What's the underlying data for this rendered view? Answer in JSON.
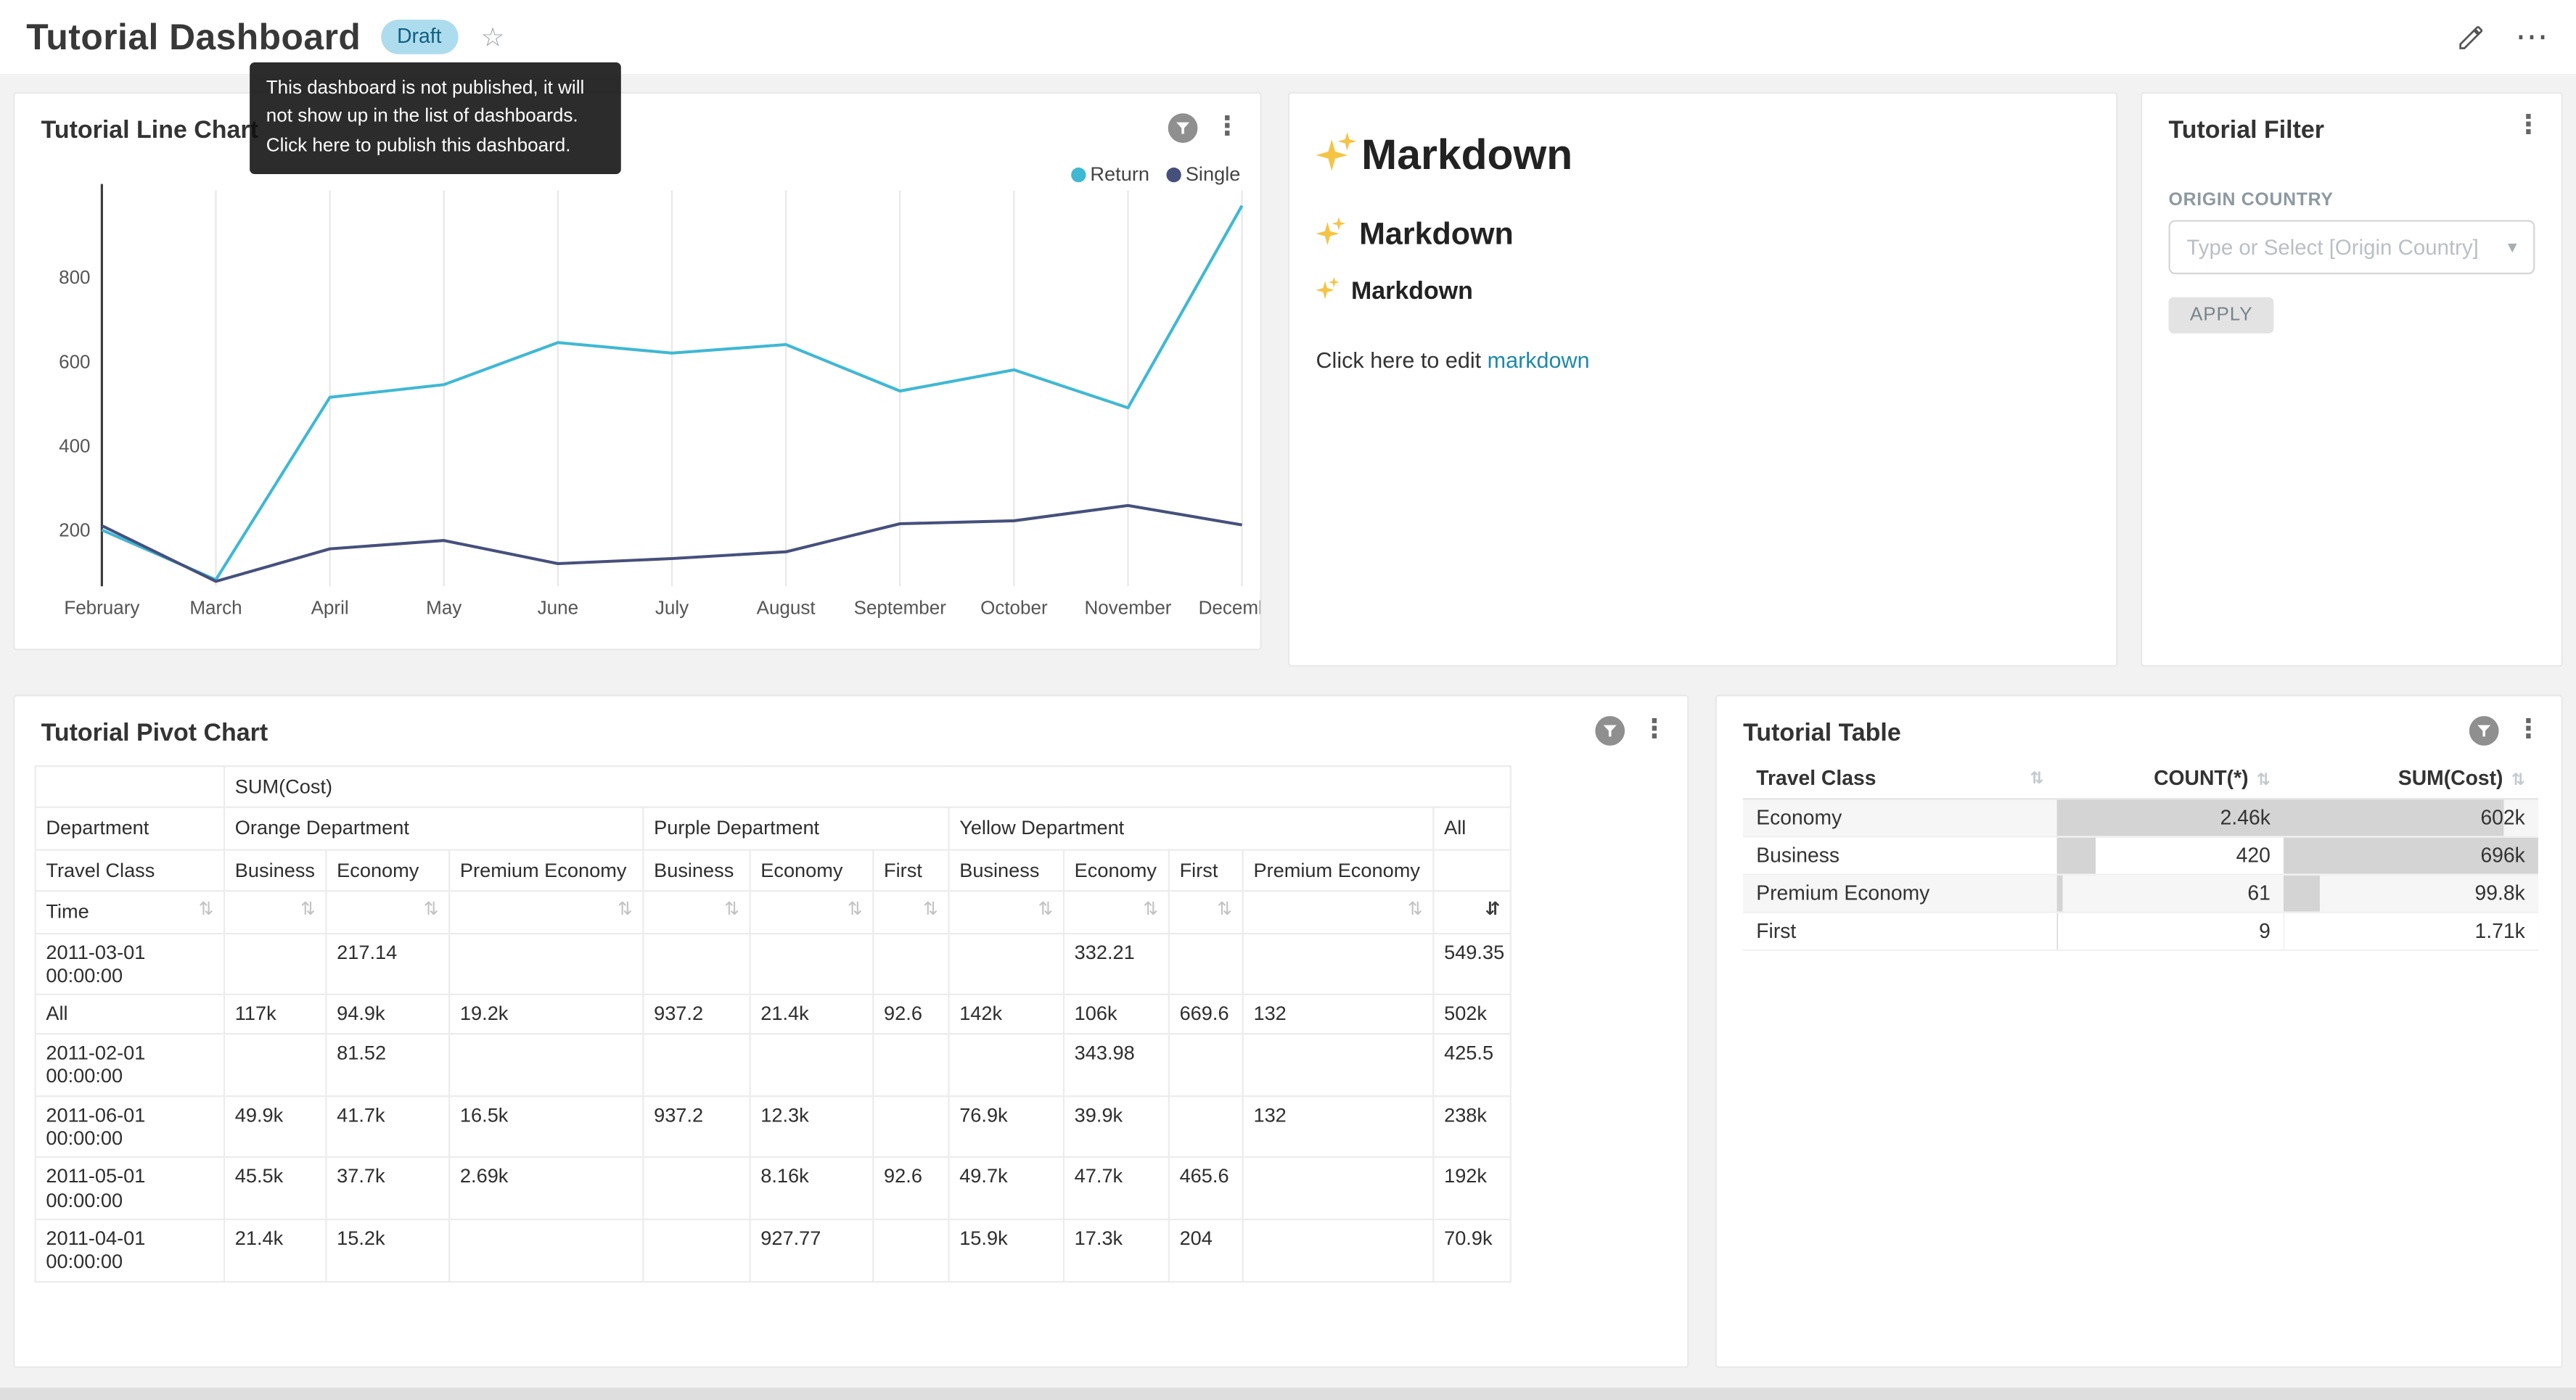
{
  "header": {
    "title": "Tutorial Dashboard",
    "badge": "Draft",
    "tooltip": "This dashboard is not published, it will not show up in the list of dashboards. Click here to publish this dashboard."
  },
  "colors": {
    "accent": "#20a7c9",
    "link": "#1e8aa8",
    "series_return": "#3fb8d4",
    "series_single": "#46507c",
    "bar": "#d4d4d4"
  },
  "line_chart": {
    "title": "Tutorial Line Chart",
    "chart_data": {
      "type": "line",
      "x": [
        "February",
        "March",
        "April",
        "May",
        "June",
        "July",
        "August",
        "September",
        "October",
        "November",
        "December"
      ],
      "yticks": [
        200,
        400,
        600,
        800
      ],
      "ylim": [
        0,
        1000
      ],
      "grid": "vertical",
      "legend_position": "top-right",
      "series": [
        {
          "name": "Return",
          "color": "#3fb8d4",
          "values": [
            200,
            82,
            515,
            545,
            645,
            620,
            640,
            530,
            580,
            490,
            970
          ]
        },
        {
          "name": "Single",
          "color": "#46507c",
          "values": [
            210,
            78,
            155,
            175,
            120,
            132,
            148,
            215,
            222,
            258,
            212
          ]
        }
      ]
    }
  },
  "markdown": {
    "h1": "Markdown",
    "h2": "Markdown",
    "h3": "Markdown",
    "paragraph_prefix": "Click here to edit ",
    "link_text": "markdown"
  },
  "filter": {
    "title": "Tutorial Filter",
    "field_label": "ORIGIN COUNTRY",
    "select_placeholder": "Type or Select [Origin Country]",
    "apply_label": "APPLY"
  },
  "pivot": {
    "title": "Tutorial Pivot Chart",
    "metric_header": "SUM(Cost)",
    "row1_label": "Department",
    "row2_label": "Travel Class",
    "row3_label": "Time",
    "groups": [
      {
        "label": "Orange Department",
        "cols": [
          "Business",
          "Economy",
          "Premium Economy"
        ]
      },
      {
        "label": "Purple Department",
        "cols": [
          "Business",
          "Economy",
          "First"
        ]
      },
      {
        "label": "Yellow Department",
        "cols": [
          "Business",
          "Economy",
          "First",
          "Premium Economy"
        ]
      },
      {
        "label": "All",
        "cols": [
          ""
        ]
      }
    ],
    "rows": [
      {
        "label": "2011-03-01 00:00:00",
        "values": [
          "",
          "217.14",
          "",
          "",
          "",
          "",
          "",
          "332.21",
          "",
          "",
          "549.35"
        ]
      },
      {
        "label": "All",
        "values": [
          "117k",
          "94.9k",
          "19.2k",
          "937.2",
          "21.4k",
          "92.6",
          "142k",
          "106k",
          "669.6",
          "132",
          "502k"
        ]
      },
      {
        "label": "2011-02-01 00:00:00",
        "values": [
          "",
          "81.52",
          "",
          "",
          "",
          "",
          "",
          "343.98",
          "",
          "",
          "425.5"
        ]
      },
      {
        "label": "2011-06-01 00:00:00",
        "values": [
          "49.9k",
          "41.7k",
          "16.5k",
          "937.2",
          "12.3k",
          "",
          "76.9k",
          "39.9k",
          "",
          "132",
          "238k"
        ]
      },
      {
        "label": "2011-05-01 00:00:00",
        "values": [
          "45.5k",
          "37.7k",
          "2.69k",
          "",
          "8.16k",
          "92.6",
          "49.7k",
          "47.7k",
          "465.6",
          "",
          "192k"
        ]
      },
      {
        "label": "2011-04-01 00:00:00",
        "values": [
          "21.4k",
          "15.2k",
          "",
          "",
          "927.77",
          "",
          "15.9k",
          "17.3k",
          "204",
          "",
          "70.9k"
        ]
      }
    ]
  },
  "table": {
    "title": "Tutorial Table",
    "columns": [
      "Travel Class",
      "COUNT(*)",
      "SUM(Cost)"
    ],
    "rows": [
      {
        "class": "Economy",
        "count": "2.46k",
        "count_v": 2460,
        "sum": "602k",
        "sum_v": 602000
      },
      {
        "class": "Business",
        "count": "420",
        "count_v": 420,
        "sum": "696k",
        "sum_v": 696000
      },
      {
        "class": "Premium Economy",
        "count": "61",
        "count_v": 61,
        "sum": "99.8k",
        "sum_v": 99800
      },
      {
        "class": "First",
        "count": "9",
        "count_v": 9,
        "sum": "1.71k",
        "sum_v": 1710
      }
    ]
  }
}
